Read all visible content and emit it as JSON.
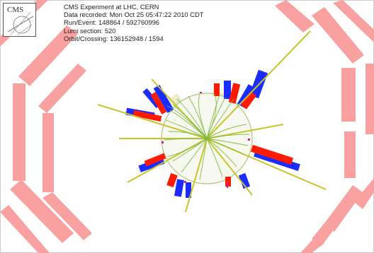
{
  "event_display": {
    "logo": {
      "text": "CMS"
    },
    "info_lines": [
      "CMS Experiment at LHC, CERN",
      "Data recorded: Mon Oct 25 05:47:22 2010 CDT",
      "Run/Event: 148864 / 592760996",
      "Lumi section: 520",
      "Orbit/Crossing: 136152948 / 1594"
    ],
    "colors": {
      "detector_modules": "#f9a0a0",
      "ecal_deposits": "#ff1a00",
      "hcal_deposits": "#1a2cff",
      "tracks": "#7fb83f",
      "jet_cones": "#e8ecc2",
      "jet_axes": "#c8c42a",
      "background": "#ffffff"
    }
  }
}
